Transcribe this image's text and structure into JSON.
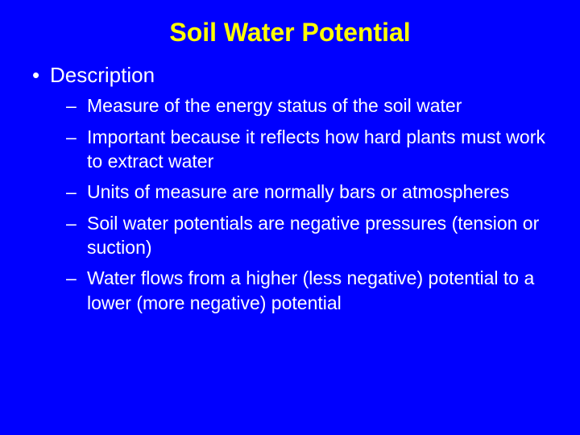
{
  "slide": {
    "title": "Soil Water Potential",
    "colors": {
      "background": "#0000ff",
      "title": "#ffff00",
      "body_text": "#ffffff"
    },
    "typography": {
      "title_fontsize": 32,
      "title_weight": "bold",
      "lvl1_fontsize": 26,
      "lvl2_fontsize": 23,
      "font_family": "Arial"
    },
    "bullets": [
      {
        "text": "Description",
        "children": [
          {
            "text": "Measure of the energy status of the soil water"
          },
          {
            "text": "Important because it reflects how hard plants must work to extract water"
          },
          {
            "text": "Units of measure are normally bars or atmospheres"
          },
          {
            "text": "Soil water potentials are negative pressures (tension or suction)"
          },
          {
            "text": "Water flows from a higher (less negative) potential to a lower (more negative) potential"
          }
        ]
      }
    ]
  }
}
